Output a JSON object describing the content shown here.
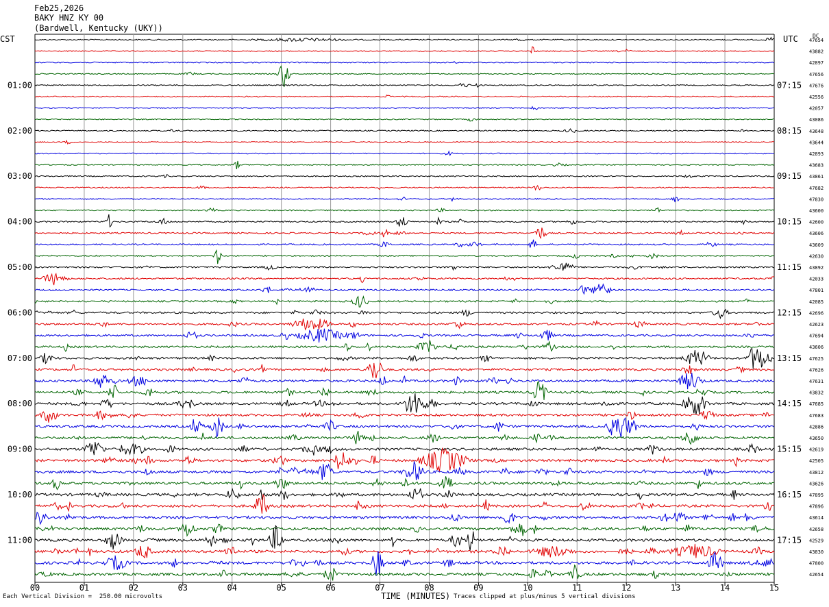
{
  "header": {
    "date": "Feb25,2026",
    "station": "BAKY HNZ KY 00",
    "location": "(Bardwell, Kentucky (UKY))"
  },
  "left_tz": "CST",
  "right_tz": "UTC",
  "dc_label": "DC",
  "footer": {
    "scale_note": "Each Vertical Division =  250.00 microvolts",
    "clip_note": "Traces clipped at plus/minus 5 vertical divisions",
    "x_title": "TIME (MINUTES)"
  },
  "chart_data": {
    "type": "line",
    "title": "",
    "xlabel": "TIME (MINUTES)",
    "xlim": [
      0,
      15
    ],
    "x_ticks": [
      "00",
      "01",
      "02",
      "03",
      "04",
      "05",
      "06",
      "07",
      "08",
      "09",
      "10",
      "11",
      "12",
      "13",
      "14",
      "15"
    ],
    "left_hour_labels": [
      {
        "row": 4,
        "label": "01:00"
      },
      {
        "row": 8,
        "label": "02:00"
      },
      {
        "row": 12,
        "label": "03:00"
      },
      {
        "row": 16,
        "label": "04:00"
      },
      {
        "row": 20,
        "label": "05:00"
      },
      {
        "row": 24,
        "label": "06:00"
      },
      {
        "row": 28,
        "label": "07:00"
      },
      {
        "row": 32,
        "label": "08:00"
      },
      {
        "row": 36,
        "label": "09:00"
      },
      {
        "row": 40,
        "label": "10:00"
      },
      {
        "row": 44,
        "label": "11:00"
      }
    ],
    "right_hour_labels": [
      {
        "row": 4,
        "label": "07:15"
      },
      {
        "row": 8,
        "label": "08:15"
      },
      {
        "row": 12,
        "label": "09:15"
      },
      {
        "row": 16,
        "label": "10:15"
      },
      {
        "row": 20,
        "label": "11:15"
      },
      {
        "row": 24,
        "label": "12:15"
      },
      {
        "row": 28,
        "label": "13:15"
      },
      {
        "row": 32,
        "label": "14:15"
      },
      {
        "row": 36,
        "label": "15:15"
      },
      {
        "row": 40,
        "label": "16:15"
      },
      {
        "row": 44,
        "label": "17:15"
      }
    ],
    "trace_colors": [
      "#000000",
      "#e00000",
      "#0000e0",
      "#006400"
    ],
    "dc_offsets": [
      "47654",
      "43882",
      "42897",
      "47656",
      "47676",
      "42556",
      "42057",
      "43086",
      "43648",
      "43644",
      "42893",
      "43683",
      "43861",
      "47682",
      "47830",
      "43600",
      "42600",
      "43606",
      "43609",
      "42630",
      "43892",
      "42033",
      "47801",
      "42085",
      "42696",
      "42623",
      "47694",
      "43606",
      "47625",
      "47626",
      "47631",
      "43832",
      "47685",
      "47683",
      "42886",
      "43650",
      "42619",
      "42505",
      "43812",
      "43626",
      "47895",
      "47896",
      "43614",
      "42658",
      "42529",
      "43830",
      "47800",
      "42654"
    ],
    "activity": [
      0.4,
      0.3,
      0.35,
      0.3,
      0.45,
      0.35,
      0.35,
      0.3,
      0.4,
      0.35,
      0.35,
      0.3,
      0.5,
      0.4,
      0.4,
      0.45,
      0.8,
      0.8,
      0.8,
      0.8,
      1.0,
      1.1,
      1.2,
      1.2,
      1.4,
      1.5,
      1.6,
      1.6,
      1.8,
      1.9,
      2.0,
      2.0,
      2.1,
      2.1,
      2.2,
      2.2,
      2.3,
      2.3,
      2.4,
      2.4,
      2.4,
      2.4,
      2.5,
      2.5,
      2.5,
      2.5,
      2.6,
      2.6
    ],
    "events": [
      {
        "row": 0,
        "t": 5.4,
        "a": 2.2,
        "d": 1.2
      },
      {
        "row": 1,
        "t": 10.1,
        "a": 8,
        "d": 0.1
      },
      {
        "row": 3,
        "t": 5.05,
        "a": 22,
        "d": 0.15
      },
      {
        "row": 8,
        "t": 14.4,
        "a": 4,
        "d": 0.1
      },
      {
        "row": 11,
        "t": 4.1,
        "a": 6,
        "d": 0.1
      },
      {
        "row": 13,
        "t": 10.2,
        "a": 5,
        "d": 0.1
      },
      {
        "row": 14,
        "t": 13.0,
        "a": 6,
        "d": 0.1
      },
      {
        "row": 15,
        "t": 12.6,
        "a": 6,
        "d": 0.1
      },
      {
        "row": 16,
        "t": 1.5,
        "a": 10,
        "d": 0.1
      },
      {
        "row": 16,
        "t": 7.45,
        "a": 10,
        "d": 0.15
      },
      {
        "row": 16,
        "t": 8.2,
        "a": 6,
        "d": 0.1
      },
      {
        "row": 17,
        "t": 10.25,
        "a": 12,
        "d": 0.15
      },
      {
        "row": 17,
        "t": 7.1,
        "a": 7,
        "d": 0.1
      },
      {
        "row": 18,
        "t": 10.1,
        "a": 8,
        "d": 0.1
      },
      {
        "row": 19,
        "t": 3.7,
        "a": 12,
        "d": 0.1
      },
      {
        "row": 20,
        "t": 10.7,
        "a": 8,
        "d": 0.3
      },
      {
        "row": 21,
        "t": 0.4,
        "a": 9,
        "d": 0.3
      },
      {
        "row": 22,
        "t": 11.5,
        "a": 16,
        "d": 0.2
      },
      {
        "row": 23,
        "t": 6.6,
        "a": 10,
        "d": 0.2
      },
      {
        "row": 24,
        "t": 13.9,
        "a": 8,
        "d": 0.2
      },
      {
        "row": 25,
        "t": 5.6,
        "a": 10,
        "d": 0.5
      },
      {
        "row": 26,
        "t": 5.8,
        "a": 10,
        "d": 0.6
      },
      {
        "row": 27,
        "t": 8.0,
        "a": 9,
        "d": 0.2
      },
      {
        "row": 28,
        "t": 14.7,
        "a": 18,
        "d": 0.3
      },
      {
        "row": 28,
        "t": 13.4,
        "a": 12,
        "d": 0.3
      },
      {
        "row": 29,
        "t": 6.9,
        "a": 20,
        "d": 0.2
      },
      {
        "row": 30,
        "t": 1.35,
        "a": 14,
        "d": 0.2
      },
      {
        "row": 30,
        "t": 13.3,
        "a": 14,
        "d": 0.3
      },
      {
        "row": 31,
        "t": 10.25,
        "a": 18,
        "d": 0.2
      },
      {
        "row": 32,
        "t": 7.7,
        "a": 20,
        "d": 0.3
      },
      {
        "row": 32,
        "t": 13.4,
        "a": 18,
        "d": 0.3
      },
      {
        "row": 33,
        "t": 0.3,
        "a": 12,
        "d": 0.2
      },
      {
        "row": 34,
        "t": 11.9,
        "a": 16,
        "d": 0.35
      },
      {
        "row": 34,
        "t": 3.7,
        "a": 12,
        "d": 0.2
      },
      {
        "row": 35,
        "t": 13.3,
        "a": 12,
        "d": 0.2
      },
      {
        "row": 36,
        "t": 1.2,
        "a": 14,
        "d": 0.25
      },
      {
        "row": 37,
        "t": 8.3,
        "a": 18,
        "d": 0.6
      },
      {
        "row": 37,
        "t": 6.25,
        "a": 12,
        "d": 0.2
      },
      {
        "row": 38,
        "t": 7.7,
        "a": 14,
        "d": 0.3
      },
      {
        "row": 38,
        "t": 5.9,
        "a": 16,
        "d": 0.2
      },
      {
        "row": 41,
        "t": 4.6,
        "a": 18,
        "d": 0.2
      },
      {
        "row": 42,
        "t": 0.1,
        "a": 12,
        "d": 0.2
      },
      {
        "row": 43,
        "t": 3.1,
        "a": 12,
        "d": 0.2
      },
      {
        "row": 44,
        "t": 8.85,
        "a": 20,
        "d": 0.1
      },
      {
        "row": 44,
        "t": 1.6,
        "a": 14,
        "d": 0.2
      },
      {
        "row": 45,
        "t": 2.2,
        "a": 12,
        "d": 0.2
      },
      {
        "row": 45,
        "t": 13.4,
        "a": 10,
        "d": 0.6
      },
      {
        "row": 45,
        "t": 10.5,
        "a": 8,
        "d": 0.5
      },
      {
        "row": 46,
        "t": 6.95,
        "a": 22,
        "d": 0.15
      },
      {
        "row": 46,
        "t": 13.8,
        "a": 14,
        "d": 0.2
      },
      {
        "row": 46,
        "t": 1.65,
        "a": 10,
        "d": 0.3
      }
    ]
  }
}
